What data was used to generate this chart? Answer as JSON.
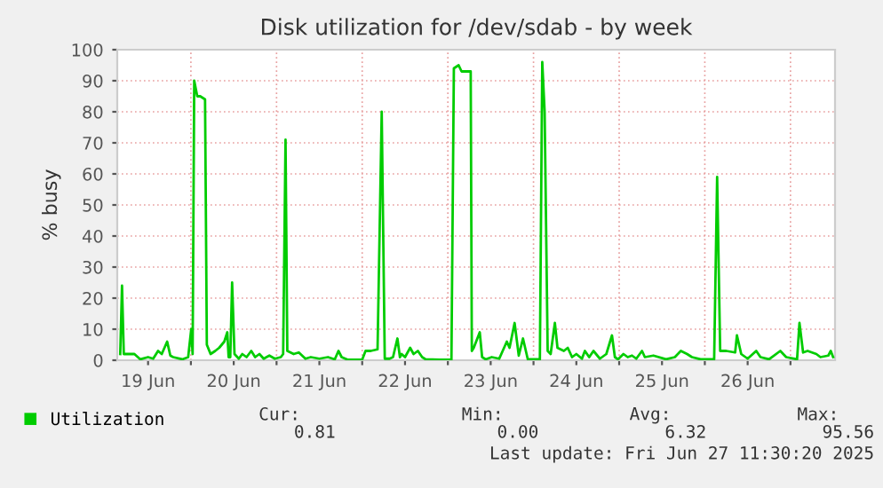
{
  "chart_data": {
    "type": "line",
    "title": "Disk utilization for /dev/sdab - by week",
    "ylabel": "% busy",
    "xlim": [
      "2025-06-19T03:22",
      "2025-06-27T12:29"
    ],
    "ylim": [
      0,
      100
    ],
    "yticks": [
      0,
      10,
      20,
      30,
      40,
      50,
      60,
      70,
      80,
      90,
      100
    ],
    "xticks": [
      {
        "value": "2025-06-19T12:00",
        "label": "19 Jun"
      },
      {
        "value": "2025-06-20T00:00",
        "label": null
      },
      {
        "value": "2025-06-20T12:00",
        "label": "20 Jun"
      },
      {
        "value": "2025-06-21T00:00",
        "label": null
      },
      {
        "value": "2025-06-21T12:00",
        "label": "21 Jun"
      },
      {
        "value": "2025-06-22T00:00",
        "label": null
      },
      {
        "value": "2025-06-22T12:00",
        "label": "22 Jun"
      },
      {
        "value": "2025-06-23T00:00",
        "label": null
      },
      {
        "value": "2025-06-23T12:00",
        "label": "23 Jun"
      },
      {
        "value": "2025-06-24T00:00",
        "label": null
      },
      {
        "value": "2025-06-24T12:00",
        "label": "24 Jun"
      },
      {
        "value": "2025-06-25T00:00",
        "label": null
      },
      {
        "value": "2025-06-25T12:00",
        "label": "25 Jun"
      },
      {
        "value": "2025-06-26T00:00",
        "label": null
      },
      {
        "value": "2025-06-26T12:00",
        "label": "26 Jun"
      },
      {
        "value": "2025-06-27T00:00",
        "label": null
      }
    ],
    "grid": true,
    "legend": "bottom left",
    "marker": "none",
    "line_style": "solid",
    "x": [
      "2025-06-19T04:12",
      "2025-06-19T04:42",
      "2025-06-19T05:12",
      "2025-06-19T08:10",
      "2025-06-19T09:50",
      "2025-06-19T12:00",
      "2025-06-19T13:26",
      "2025-06-19T14:48",
      "2025-06-19T15:50",
      "2025-06-19T17:21",
      "2025-06-19T18:14",
      "2025-06-19T19:02",
      "2025-06-19T21:36",
      "2025-06-19T23:14",
      "2025-06-20T00:06",
      "2025-06-20T00:29",
      "2025-06-20T00:56",
      "2025-06-20T01:47",
      "2025-06-20T02:37",
      "2025-06-20T03:58",
      "2025-06-20T04:28",
      "2025-06-20T05:31",
      "2025-06-20T06:49",
      "2025-06-20T07:55",
      "2025-06-20T09:22",
      "2025-06-20T10:12",
      "2025-06-20T10:34",
      "2025-06-20T11:02",
      "2025-06-20T11:33",
      "2025-06-20T12:13",
      "2025-06-20T13:26",
      "2025-06-20T14:24",
      "2025-06-20T15:36",
      "2025-06-20T16:55",
      "2025-06-20T18:00",
      "2025-06-20T19:12",
      "2025-06-20T20:24",
      "2025-06-20T21:59",
      "2025-06-20T23:31",
      "2025-06-21T01:12",
      "2025-06-21T01:51",
      "2025-06-21T02:31",
      "2025-06-21T03:01",
      "2025-06-21T04:48",
      "2025-06-21T06:14",
      "2025-06-21T08:05",
      "2025-06-21T09:36",
      "2025-06-21T12:00",
      "2025-06-21T14:24",
      "2025-06-21T16:19",
      "2025-06-21T17:21",
      "2025-06-21T18:14",
      "2025-06-21T19:52",
      "2025-06-21T21:36",
      "2025-06-22T00:00",
      "2025-06-22T00:56",
      "2025-06-22T02:24",
      "2025-06-22T04:18",
      "2025-06-22T05:28",
      "2025-06-22T06:19",
      "2025-06-22T07:41",
      "2025-06-22T08:38",
      "2025-06-22T09:52",
      "2025-06-22T10:34",
      "2025-06-22T11:02",
      "2025-06-22T12:00",
      "2025-06-22T13:26",
      "2025-06-22T14:24",
      "2025-06-22T15:36",
      "2025-06-22T16:48",
      "2025-06-22T17:46",
      "2025-06-22T21:36",
      "2025-06-23T01:00",
      "2025-06-23T01:41",
      "2025-06-23T03:01",
      "2025-06-23T03:50",
      "2025-06-23T04:42",
      "2025-06-23T06:24",
      "2025-06-23T06:43",
      "2025-06-23T07:15",
      "2025-06-23T08:56",
      "2025-06-23T09:36",
      "2025-06-23T10:36",
      "2025-06-23T12:17",
      "2025-06-23T14:24",
      "2025-06-23T16:31",
      "2025-06-23T17:17",
      "2025-06-23T18:42",
      "2025-06-23T19:52",
      "2025-06-23T21:03",
      "2025-06-23T22:24",
      "2025-06-24T01:47",
      "2025-06-24T02:27",
      "2025-06-24T03:07",
      "2025-06-24T03:58",
      "2025-06-24T04:48",
      "2025-06-24T05:59",
      "2025-06-24T06:43",
      "2025-06-24T08:30",
      "2025-06-24T09:36",
      "2025-06-24T10:48",
      "2025-06-24T12:00",
      "2025-06-24T13:34",
      "2025-06-24T14:24",
      "2025-06-24T15:36",
      "2025-06-24T16:48",
      "2025-06-24T18:36",
      "2025-06-24T20:24",
      "2025-06-24T21:59",
      "2025-06-24T22:48",
      "2025-06-24T23:40",
      "2025-06-25T01:12",
      "2025-06-25T02:24",
      "2025-06-25T03:36",
      "2025-06-25T04:48",
      "2025-06-25T06:24",
      "2025-06-25T07:12",
      "2025-06-25T09:36",
      "2025-06-25T13:08",
      "2025-06-25T15:36",
      "2025-06-25T17:17",
      "2025-06-25T19:02",
      "2025-06-25T20:24",
      "2025-06-25T22:48",
      "2025-06-26T02:37",
      "2025-06-26T03:27",
      "2025-06-26T04:18",
      "2025-06-26T06:00",
      "2025-06-26T08:30",
      "2025-06-26T09:00",
      "2025-06-26T10:12",
      "2025-06-26T12:00",
      "2025-06-26T14:24",
      "2025-06-26T15:36",
      "2025-06-26T18:00",
      "2025-06-26T21:09",
      "2025-06-26T22:48",
      "2025-06-27T01:51",
      "2025-06-27T02:31",
      "2025-06-27T03:32",
      "2025-06-27T04:48",
      "2025-06-27T07:15",
      "2025-06-27T08:24",
      "2025-06-27T10:36",
      "2025-06-27T11:17",
      "2025-06-27T11:57"
    ],
    "series": [
      {
        "name": "Utilization",
        "color": "#00cc00",
        "values": [
          2,
          24,
          2,
          2,
          0.3,
          1,
          0.5,
          3,
          2,
          6,
          1.5,
          1,
          0.3,
          1,
          10,
          2,
          90,
          85,
          85,
          84,
          5,
          2,
          3,
          4,
          6,
          9,
          1,
          1,
          25,
          2,
          0.5,
          2,
          1,
          3,
          1,
          2,
          0.5,
          1.5,
          0.5,
          1,
          2,
          71,
          3,
          2,
          2.5,
          0.5,
          1,
          0.5,
          1,
          0.3,
          3,
          1,
          0.2,
          0.2,
          0.2,
          3,
          3,
          3.5,
          80,
          0.5,
          0.5,
          1,
          7,
          1,
          2,
          1,
          4,
          2,
          3,
          1,
          0.3,
          0.2,
          0.2,
          94,
          95,
          93,
          93,
          93,
          3,
          4,
          9,
          1,
          0.3,
          1,
          0.5,
          6,
          4,
          12,
          1.5,
          7,
          0.3,
          0.3,
          96,
          80,
          3,
          2,
          12,
          4,
          3,
          4,
          1,
          2,
          0.5,
          3,
          1,
          3,
          0.5,
          2,
          8,
          1,
          0.3,
          2,
          1,
          1.5,
          0.5,
          3,
          1,
          1.5,
          0.3,
          1,
          3,
          2,
          1,
          0.3,
          0.3,
          59,
          3,
          3,
          2.5,
          8,
          2,
          0.5,
          3,
          1,
          0.3,
          3,
          1,
          0.3,
          12,
          2.5,
          3,
          2,
          1,
          1.5,
          3,
          1
        ]
      }
    ],
    "annotations": [
      "Cur:",
      "Min:",
      "Avg:",
      "Max:",
      "0.81",
      "0.00",
      "6.32",
      "95.56",
      "Last update: Fri Jun 27 11:30:20 2025"
    ]
  }
}
